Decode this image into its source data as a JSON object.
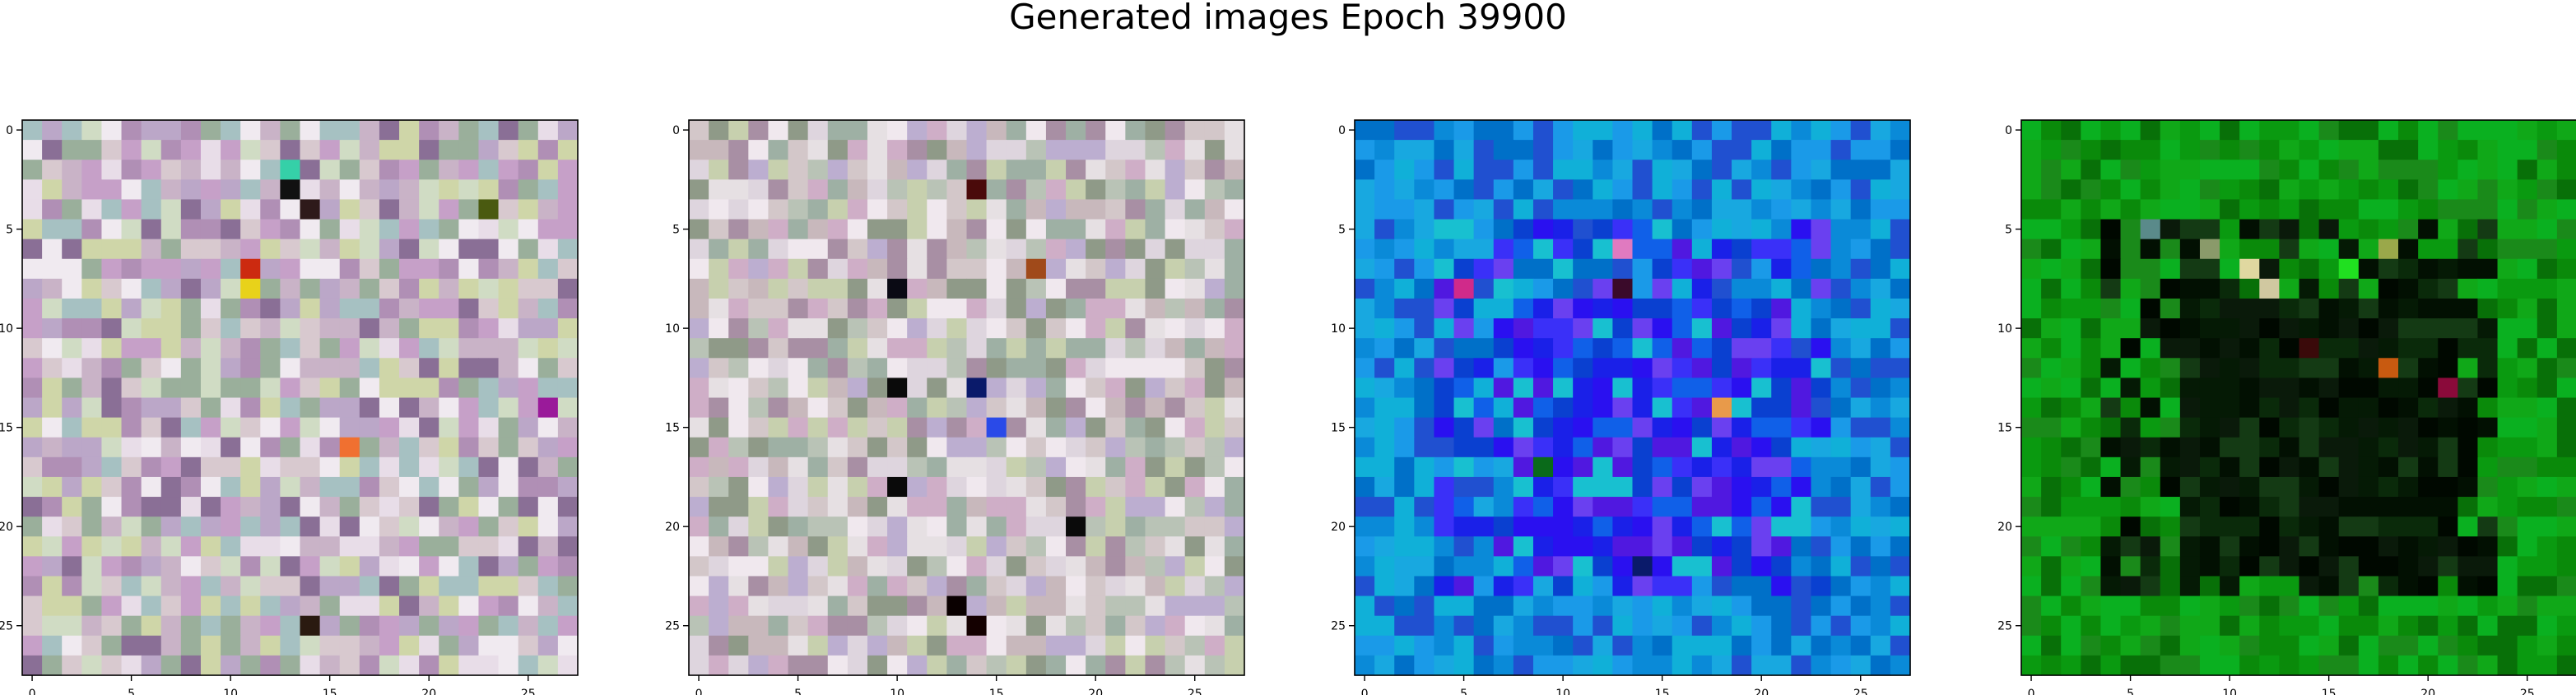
{
  "title": "Generated images Epoch 39900",
  "chart_data": [
    {
      "type": "heatmap",
      "subtype": "rgb-image",
      "grid": [
        28,
        28
      ],
      "xticks": [
        "0",
        "5",
        "10",
        "15",
        "20",
        "25"
      ],
      "yticks": [
        "0",
        "5",
        "10",
        "15",
        "20",
        "25"
      ],
      "palette": [
        "#c9b3c7",
        "#d8c9cf",
        "#bba7c8",
        "#b08fb5",
        "#d0dcc4",
        "#9aaf9b",
        "#e8dde8",
        "#c6a0c8",
        "#a6c1c2",
        "#f0eaf0",
        "#8a6f96",
        "#cfd6a8"
      ],
      "accents": [
        {
          "row": 3,
          "col": 13,
          "color": "#111111"
        },
        {
          "row": 2,
          "col": 13,
          "color": "#35d0a8"
        },
        {
          "row": 4,
          "col": 14,
          "color": "#2e1a1a"
        },
        {
          "row": 7,
          "col": 11,
          "color": "#cc2a10"
        },
        {
          "row": 8,
          "col": 11,
          "color": "#e8d21a"
        },
        {
          "row": 16,
          "col": 16,
          "color": "#f07030"
        },
        {
          "row": 25,
          "col": 14,
          "color": "#2a1a10"
        },
        {
          "row": 14,
          "col": 26,
          "color": "#9a1a9a"
        },
        {
          "row": 4,
          "col": 23,
          "color": "#4a5a10"
        }
      ]
    },
    {
      "type": "heatmap",
      "subtype": "rgb-image",
      "grid": [
        28,
        28
      ],
      "xticks": [
        "0",
        "5",
        "10",
        "15",
        "20",
        "25"
      ],
      "yticks": [
        "0",
        "5",
        "10",
        "15",
        "20",
        "25"
      ],
      "palette": [
        "#c8b8bc",
        "#d3c7c9",
        "#b9c3b6",
        "#9eb0a4",
        "#ded5de",
        "#cfaec7",
        "#a88fa4",
        "#e6e0e3",
        "#c7d0ae",
        "#8f9a88",
        "#bcaed0",
        "#f0e8ee"
      ],
      "accents": [
        {
          "row": 3,
          "col": 14,
          "color": "#4a0a0a"
        },
        {
          "row": 8,
          "col": 10,
          "color": "#0a0a14"
        },
        {
          "row": 13,
          "col": 10,
          "color": "#0a0a0a"
        },
        {
          "row": 13,
          "col": 14,
          "color": "#0a1a6a"
        },
        {
          "row": 15,
          "col": 15,
          "color": "#2a4ae8"
        },
        {
          "row": 18,
          "col": 10,
          "color": "#0a0a0a"
        },
        {
          "row": 20,
          "col": 19,
          "color": "#0a0a0a"
        },
        {
          "row": 24,
          "col": 13,
          "color": "#0a0000"
        },
        {
          "row": 25,
          "col": 14,
          "color": "#140000"
        },
        {
          "row": 7,
          "col": 17,
          "color": "#a04a1a"
        }
      ]
    },
    {
      "type": "heatmap",
      "subtype": "rgb-image",
      "grid": [
        28,
        28
      ],
      "xticks": [
        "0",
        "5",
        "10",
        "15",
        "20",
        "25"
      ],
      "yticks": [
        "0",
        "5",
        "10",
        "15",
        "20",
        "25"
      ],
      "palette": [
        "#0a8ad8",
        "#1a9ae8",
        "#0070c8",
        "#18a8e0",
        "#2050d0",
        "#10b0d8"
      ],
      "inner_palette": [
        "#2a10f0",
        "#1a20e8",
        "#3a30f8",
        "#1060e8",
        "#5018e0",
        "#0a40d0",
        "#18c0d0",
        "#6a40f0"
      ],
      "accents": [
        {
          "row": 8,
          "col": 5,
          "color": "#d02a8a"
        },
        {
          "row": 8,
          "col": 13,
          "color": "#3a0a2a"
        },
        {
          "row": 14,
          "col": 18,
          "color": "#e89a4a"
        },
        {
          "row": 17,
          "col": 9,
          "color": "#0a6a1a"
        },
        {
          "row": 22,
          "col": 14,
          "color": "#0a1a6a"
        },
        {
          "row": 6,
          "col": 13,
          "color": "#e07ac0"
        }
      ]
    },
    {
      "type": "heatmap",
      "subtype": "rgb-image",
      "grid": [
        28,
        28
      ],
      "xticks": [
        "0",
        "5",
        "10",
        "15",
        "20",
        "25"
      ],
      "yticks": [
        "0",
        "5",
        "10",
        "15",
        "20",
        "25"
      ],
      "palette": [
        "#0a8a0a",
        "#0a9a10",
        "#10a818",
        "#087008",
        "#1a8a1a",
        "#0ab020"
      ],
      "inner_palette": [
        "#021002",
        "#051a05",
        "#0a2a0a",
        "#000800",
        "#0a1a0a",
        "#143a14"
      ],
      "accents": [
        {
          "row": 6,
          "col": 9,
          "color": "#8a9a6a"
        },
        {
          "row": 7,
          "col": 11,
          "color": "#e0d8a0"
        },
        {
          "row": 8,
          "col": 12,
          "color": "#d0c8a0"
        },
        {
          "row": 6,
          "col": 18,
          "color": "#9aa84a"
        },
        {
          "row": 12,
          "col": 18,
          "color": "#c85a10"
        },
        {
          "row": 13,
          "col": 21,
          "color": "#8a0a3a"
        },
        {
          "row": 11,
          "col": 14,
          "color": "#3a0a0a"
        },
        {
          "row": 5,
          "col": 6,
          "color": "#5a8a8a"
        },
        {
          "row": 7,
          "col": 16,
          "color": "#20e020"
        }
      ]
    }
  ]
}
